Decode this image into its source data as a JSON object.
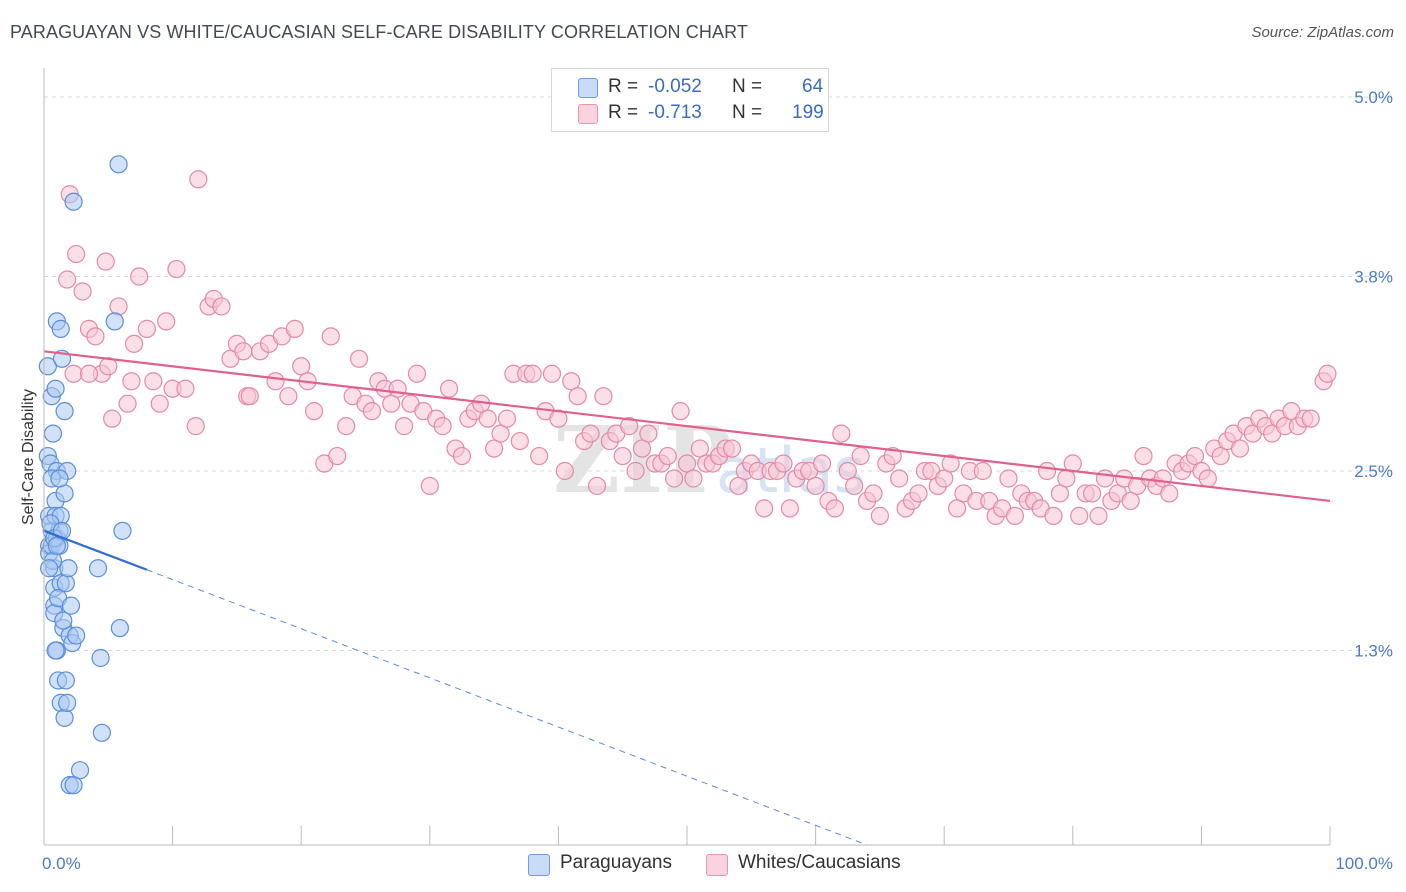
{
  "header": {
    "title": "PARAGUAYAN VS WHITE/CAUCASIAN SELF-CARE DISABILITY CORRELATION CHART",
    "source": "Source: ZipAtlas.com"
  },
  "legend": {
    "rows": [
      {
        "r_label": "R =",
        "r_value": "-0.052",
        "n_label": "N =",
        "n_value": "64",
        "color": "#a9c8f2"
      },
      {
        "r_label": "R =",
        "r_value": "-0.713",
        "n_label": "N =",
        "n_value": "199",
        "color": "#f7b8cc"
      }
    ]
  },
  "bottom_legend": {
    "items": [
      {
        "label": "Paraguayans",
        "color": "#a9c8f2"
      },
      {
        "label": "Whites/Caucasians",
        "color": "#f7b8cc"
      }
    ]
  },
  "colors": {
    "blue_fill": "#a9c8f2",
    "blue_stroke": "#5b8fd8",
    "blue_line": "#2f6fd0",
    "pink_fill": "#f7c4d4",
    "pink_stroke": "#e389a8",
    "pink_line": "#e0608e",
    "grid": "#d9d9d9",
    "axis": "#bbbbbb",
    "tick_text": "#4a7cc7"
  },
  "chart_data": {
    "type": "scatter",
    "ylabel": "Self-Care Disability",
    "xlabel": "",
    "xlim": [
      0,
      100
    ],
    "ylim": [
      0,
      5.0
    ],
    "x_tick_labels": [
      {
        "value": 0,
        "label": "0.0%"
      },
      {
        "value": 100,
        "label": "100.0%"
      }
    ],
    "y_tick_labels": [
      {
        "value": 1.3,
        "label": "1.3%"
      },
      {
        "value": 2.5,
        "label": "2.5%"
      },
      {
        "value": 3.8,
        "label": "3.8%"
      },
      {
        "value": 5.0,
        "label": "5.0%"
      }
    ],
    "x_minor_ticks": [
      0,
      10,
      20,
      30,
      40,
      50,
      60,
      70,
      80,
      90,
      100
    ],
    "watermark": "ZIPatlas",
    "series": [
      {
        "name": "Paraguayans",
        "trend": {
          "x0": 0,
          "y0": 2.1,
          "x1": 8,
          "y1": 1.84,
          "dashed_to_x": 64,
          "dashed_to_y": 0
        },
        "points": [
          [
            0.3,
            3.2
          ],
          [
            0.3,
            2.6
          ],
          [
            0.4,
            2.2
          ],
          [
            0.4,
            2.0
          ],
          [
            0.4,
            1.95
          ],
          [
            0.5,
            2.55
          ],
          [
            0.6,
            3.0
          ],
          [
            0.6,
            2.1
          ],
          [
            0.6,
            2.0
          ],
          [
            0.7,
            2.75
          ],
          [
            0.8,
            1.85
          ],
          [
            0.8,
            1.72
          ],
          [
            0.8,
            1.6
          ],
          [
            0.8,
            1.55
          ],
          [
            0.9,
            3.05
          ],
          [
            0.9,
            2.3
          ],
          [
            0.9,
            2.2
          ],
          [
            1.0,
            3.5
          ],
          [
            1.0,
            2.5
          ],
          [
            1.0,
            2.05
          ],
          [
            1.0,
            1.3
          ],
          [
            1.1,
            1.1
          ],
          [
            1.2,
            2.1
          ],
          [
            1.2,
            2.0
          ],
          [
            1.3,
            3.45
          ],
          [
            1.3,
            2.2
          ],
          [
            1.3,
            1.75
          ],
          [
            1.3,
            0.95
          ],
          [
            1.4,
            3.25
          ],
          [
            1.5,
            1.45
          ],
          [
            1.6,
            2.9
          ],
          [
            1.6,
            2.35
          ],
          [
            1.6,
            0.85
          ],
          [
            1.7,
            1.75
          ],
          [
            1.8,
            2.5
          ],
          [
            1.8,
            0.95
          ],
          [
            1.9,
            1.85
          ],
          [
            2.0,
            1.4
          ],
          [
            2.0,
            0.4
          ],
          [
            2.2,
            1.35
          ],
          [
            2.3,
            0.4
          ],
          [
            2.5,
            1.4
          ],
          [
            2.3,
            4.3
          ],
          [
            2.8,
            0.5
          ],
          [
            4.2,
            1.85
          ],
          [
            4.4,
            1.25
          ],
          [
            4.5,
            0.75
          ],
          [
            5.5,
            3.5
          ],
          [
            5.9,
            1.45
          ],
          [
            6.1,
            2.1
          ],
          [
            5.8,
            4.55
          ],
          [
            0.5,
            2.15
          ],
          [
            0.7,
            1.9
          ],
          [
            1.1,
            1.65
          ],
          [
            1.5,
            1.5
          ],
          [
            0.6,
            2.45
          ],
          [
            0.9,
            1.3
          ],
          [
            1.2,
            2.45
          ],
          [
            0.4,
            1.85
          ],
          [
            2.1,
            1.6
          ],
          [
            0.8,
            2.05
          ],
          [
            1.4,
            2.1
          ],
          [
            1.7,
            1.1
          ],
          [
            1.0,
            2.0
          ]
        ]
      },
      {
        "name": "Whites/Caucasians",
        "trend": {
          "x0": 0,
          "y0": 3.3,
          "x1": 100,
          "y1": 2.3
        },
        "points": [
          [
            2,
            4.35
          ],
          [
            2.3,
            3.15
          ],
          [
            1.8,
            3.78
          ],
          [
            2.5,
            3.95
          ],
          [
            3,
            3.7
          ],
          [
            3.5,
            3.45
          ],
          [
            4,
            3.4
          ],
          [
            4.5,
            3.15
          ],
          [
            4.8,
            3.9
          ],
          [
            5.3,
            2.85
          ],
          [
            5.8,
            3.6
          ],
          [
            6.5,
            2.95
          ],
          [
            7,
            3.35
          ],
          [
            7.4,
            3.8
          ],
          [
            8,
            3.45
          ],
          [
            8.5,
            3.1
          ],
          [
            9,
            2.95
          ],
          [
            9.5,
            3.5
          ],
          [
            10,
            3.05
          ],
          [
            10.3,
            3.85
          ],
          [
            11,
            3.05
          ],
          [
            11.8,
            2.8
          ],
          [
            12,
            4.45
          ],
          [
            12.8,
            3.6
          ],
          [
            13.2,
            3.65
          ],
          [
            13.8,
            3.6
          ],
          [
            14.5,
            3.25
          ],
          [
            15,
            3.35
          ],
          [
            15.5,
            3.3
          ],
          [
            15.8,
            3.0
          ],
          [
            16,
            3.0
          ],
          [
            16.8,
            3.3
          ],
          [
            17.5,
            3.35
          ],
          [
            18,
            3.1
          ],
          [
            18.5,
            3.4
          ],
          [
            19,
            3.0
          ],
          [
            19.5,
            3.45
          ],
          [
            20,
            3.2
          ],
          [
            20.5,
            3.1
          ],
          [
            21,
            2.9
          ],
          [
            21.8,
            2.55
          ],
          [
            22.3,
            3.4
          ],
          [
            22.8,
            2.6
          ],
          [
            23.5,
            2.8
          ],
          [
            24,
            3.0
          ],
          [
            24.5,
            3.25
          ],
          [
            25,
            2.95
          ],
          [
            25.5,
            2.9
          ],
          [
            26,
            3.1
          ],
          [
            26.5,
            3.05
          ],
          [
            27,
            2.95
          ],
          [
            27.5,
            3.05
          ],
          [
            28,
            2.8
          ],
          [
            28.5,
            2.95
          ],
          [
            29,
            3.15
          ],
          [
            29.5,
            2.9
          ],
          [
            30,
            2.4
          ],
          [
            30.5,
            2.85
          ],
          [
            31,
            2.8
          ],
          [
            31.5,
            3.05
          ],
          [
            32,
            2.65
          ],
          [
            32.5,
            2.6
          ],
          [
            33,
            2.85
          ],
          [
            33.5,
            2.9
          ],
          [
            34,
            2.95
          ],
          [
            34.5,
            2.85
          ],
          [
            35,
            2.65
          ],
          [
            35.5,
            2.75
          ],
          [
            36,
            2.85
          ],
          [
            36.5,
            3.15
          ],
          [
            37,
            2.7
          ],
          [
            37.5,
            3.15
          ],
          [
            38,
            3.15
          ],
          [
            38.5,
            2.6
          ],
          [
            39,
            2.9
          ],
          [
            39.5,
            3.15
          ],
          [
            40,
            2.85
          ],
          [
            40.5,
            2.5
          ],
          [
            41,
            3.1
          ],
          [
            41.5,
            3.0
          ],
          [
            42,
            2.7
          ],
          [
            42.5,
            2.75
          ],
          [
            43,
            2.4
          ],
          [
            43.5,
            3.0
          ],
          [
            44,
            2.7
          ],
          [
            44.5,
            2.75
          ],
          [
            45,
            2.6
          ],
          [
            45.5,
            2.8
          ],
          [
            46,
            2.5
          ],
          [
            46.5,
            2.65
          ],
          [
            47,
            2.75
          ],
          [
            47.5,
            2.55
          ],
          [
            48,
            2.55
          ],
          [
            48.5,
            2.6
          ],
          [
            49,
            2.45
          ],
          [
            49.5,
            2.9
          ],
          [
            50,
            2.55
          ],
          [
            50.5,
            2.45
          ],
          [
            51,
            2.65
          ],
          [
            51.5,
            2.55
          ],
          [
            52,
            2.55
          ],
          [
            52.5,
            2.6
          ],
          [
            53,
            2.65
          ],
          [
            53.5,
            2.65
          ],
          [
            54,
            2.4
          ],
          [
            54.5,
            2.5
          ],
          [
            55,
            2.55
          ],
          [
            55.5,
            2.5
          ],
          [
            56,
            2.25
          ],
          [
            56.5,
            2.5
          ],
          [
            57,
            2.5
          ],
          [
            57.5,
            2.55
          ],
          [
            58,
            2.25
          ],
          [
            58.5,
            2.45
          ],
          [
            59,
            2.5
          ],
          [
            59.5,
            2.5
          ],
          [
            60,
            2.4
          ],
          [
            60.5,
            2.55
          ],
          [
            61,
            2.3
          ],
          [
            61.5,
            2.25
          ],
          [
            62,
            2.75
          ],
          [
            62.5,
            2.5
          ],
          [
            63,
            2.4
          ],
          [
            63.5,
            2.6
          ],
          [
            64,
            2.3
          ],
          [
            64.5,
            2.35
          ],
          [
            65,
            2.2
          ],
          [
            65.5,
            2.55
          ],
          [
            66,
            2.6
          ],
          [
            66.5,
            2.45
          ],
          [
            67,
            2.25
          ],
          [
            67.5,
            2.3
          ],
          [
            68,
            2.35
          ],
          [
            68.5,
            2.5
          ],
          [
            69,
            2.5
          ],
          [
            69.5,
            2.4
          ],
          [
            70,
            2.45
          ],
          [
            70.5,
            2.55
          ],
          [
            71,
            2.25
          ],
          [
            71.5,
            2.35
          ],
          [
            72,
            2.5
          ],
          [
            72.5,
            2.3
          ],
          [
            73,
            2.5
          ],
          [
            73.5,
            2.3
          ],
          [
            74,
            2.2
          ],
          [
            74.5,
            2.25
          ],
          [
            75,
            2.45
          ],
          [
            75.5,
            2.2
          ],
          [
            76,
            2.35
          ],
          [
            76.5,
            2.3
          ],
          [
            77,
            2.3
          ],
          [
            77.5,
            2.25
          ],
          [
            78,
            2.5
          ],
          [
            78.5,
            2.2
          ],
          [
            79,
            2.35
          ],
          [
            79.5,
            2.45
          ],
          [
            80,
            2.55
          ],
          [
            80.5,
            2.2
          ],
          [
            81,
            2.35
          ],
          [
            81.5,
            2.35
          ],
          [
            82,
            2.2
          ],
          [
            82.5,
            2.45
          ],
          [
            83,
            2.3
          ],
          [
            83.5,
            2.35
          ],
          [
            84,
            2.45
          ],
          [
            84.5,
            2.3
          ],
          [
            85,
            2.4
          ],
          [
            85.5,
            2.6
          ],
          [
            86,
            2.45
          ],
          [
            86.5,
            2.4
          ],
          [
            87,
            2.45
          ],
          [
            87.5,
            2.35
          ],
          [
            88,
            2.55
          ],
          [
            88.5,
            2.5
          ],
          [
            89,
            2.55
          ],
          [
            89.5,
            2.6
          ],
          [
            90,
            2.5
          ],
          [
            90.5,
            2.45
          ],
          [
            91,
            2.65
          ],
          [
            91.5,
            2.6
          ],
          [
            92,
            2.7
          ],
          [
            92.5,
            2.75
          ],
          [
            93,
            2.65
          ],
          [
            93.5,
            2.8
          ],
          [
            94,
            2.75
          ],
          [
            94.5,
            2.85
          ],
          [
            95,
            2.8
          ],
          [
            95.5,
            2.75
          ],
          [
            96,
            2.85
          ],
          [
            96.5,
            2.8
          ],
          [
            97,
            2.9
          ],
          [
            97.5,
            2.8
          ],
          [
            98,
            2.85
          ],
          [
            98.5,
            2.85
          ],
          [
            99.5,
            3.1
          ],
          [
            99.8,
            3.15
          ],
          [
            3.5,
            3.15
          ],
          [
            5,
            3.2
          ],
          [
            6.8,
            3.1
          ]
        ]
      }
    ]
  }
}
